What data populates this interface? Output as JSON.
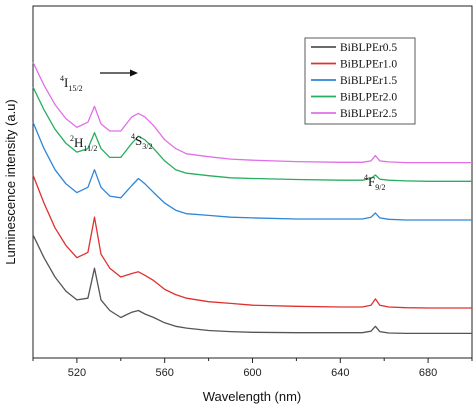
{
  "chart_data": {
    "type": "line",
    "xlabel": "Wavelength (nm)",
    "ylabel": "Luminescence intensity (a.u)",
    "xlim": [
      500,
      700
    ],
    "ylim": [
      0,
      10
    ],
    "x_ticks": [
      520,
      560,
      600,
      640,
      680
    ],
    "grid": false,
    "legend_position": "top-right",
    "x": [
      500,
      505,
      510,
      515,
      520,
      525,
      528,
      531,
      535,
      540,
      545,
      548,
      551,
      555,
      560,
      565,
      570,
      580,
      590,
      600,
      620,
      640,
      650,
      654,
      656,
      658,
      662,
      670,
      680,
      690,
      700
    ],
    "series": [
      {
        "name": "BiBLPEr0.5",
        "color": "#555555",
        "values": [
          3.5,
          2.85,
          2.3,
          1.9,
          1.65,
          1.7,
          2.55,
          1.65,
          1.35,
          1.15,
          1.3,
          1.35,
          1.25,
          1.15,
          1.0,
          0.9,
          0.85,
          0.78,
          0.75,
          0.73,
          0.72,
          0.72,
          0.72,
          0.76,
          0.9,
          0.75,
          0.71,
          0.7,
          0.7,
          0.7,
          0.7
        ]
      },
      {
        "name": "BiBLPEr1.0",
        "color": "#e03030",
        "values": [
          5.2,
          4.4,
          3.7,
          3.2,
          2.85,
          3.0,
          4.0,
          2.95,
          2.55,
          2.3,
          2.4,
          2.45,
          2.35,
          2.2,
          1.95,
          1.8,
          1.7,
          1.6,
          1.55,
          1.5,
          1.47,
          1.45,
          1.45,
          1.5,
          1.68,
          1.5,
          1.45,
          1.43,
          1.42,
          1.42,
          1.42
        ]
      },
      {
        "name": "BiBLPEr1.5",
        "color": "#2f86d8",
        "values": [
          6.7,
          5.95,
          5.35,
          4.95,
          4.7,
          4.85,
          5.35,
          4.85,
          4.6,
          4.55,
          4.9,
          5.1,
          4.95,
          4.7,
          4.4,
          4.2,
          4.1,
          4.05,
          4.0,
          3.98,
          3.95,
          3.95,
          3.95,
          4.0,
          4.12,
          3.98,
          3.94,
          3.92,
          3.92,
          3.92,
          3.92
        ]
      },
      {
        "name": "BiBLPEr2.0",
        "color": "#27ae60",
        "values": [
          7.7,
          7.05,
          6.5,
          6.1,
          5.85,
          5.95,
          6.4,
          5.95,
          5.7,
          5.7,
          6.1,
          6.3,
          6.2,
          5.95,
          5.6,
          5.35,
          5.25,
          5.18,
          5.12,
          5.1,
          5.07,
          5.05,
          5.05,
          5.1,
          5.2,
          5.08,
          5.05,
          5.03,
          5.02,
          5.02,
          5.02
        ]
      },
      {
        "name": "BiBLPEr2.5",
        "color": "#e070e8",
        "values": [
          8.4,
          7.75,
          7.2,
          6.8,
          6.55,
          6.7,
          7.15,
          6.65,
          6.45,
          6.45,
          6.85,
          6.95,
          6.85,
          6.6,
          6.2,
          5.95,
          5.8,
          5.72,
          5.65,
          5.62,
          5.58,
          5.56,
          5.56,
          5.6,
          5.75,
          5.6,
          5.57,
          5.55,
          5.55,
          5.55,
          5.55
        ]
      }
    ],
    "annotations": [
      {
        "id": "i15",
        "sup": "4",
        "main": "I",
        "sub": "15/2",
        "arrow": true
      },
      {
        "id": "h11",
        "sup": "2",
        "main": "H",
        "sub": "11/2"
      },
      {
        "id": "s3",
        "sup": "4",
        "main": "S",
        "sub": "3/2"
      },
      {
        "id": "f9",
        "sup": "4",
        "main": "F",
        "sub": "9/2"
      }
    ]
  }
}
